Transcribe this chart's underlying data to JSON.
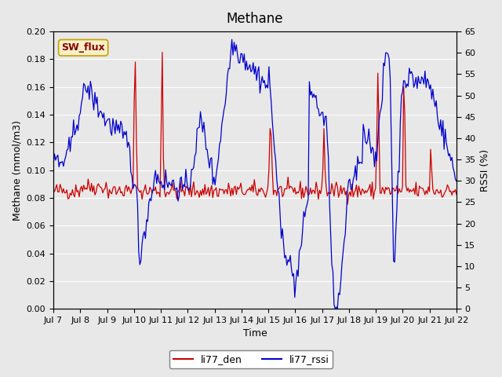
{
  "title": "Methane",
  "xlabel": "Time",
  "ylabel_left": "Methane (mmol/m3)",
  "ylabel_right": "RSSI (%)",
  "ylim_left": [
    0.0,
    0.2
  ],
  "ylim_right": [
    0,
    65
  ],
  "color_red": "#cc0000",
  "color_blue": "#0000cc",
  "bg_color": "#e8e8e8",
  "sw_flux_label": "SW_flux",
  "legend_red": "li77_den",
  "legend_blue": "li77_rssi",
  "n_points": 360
}
